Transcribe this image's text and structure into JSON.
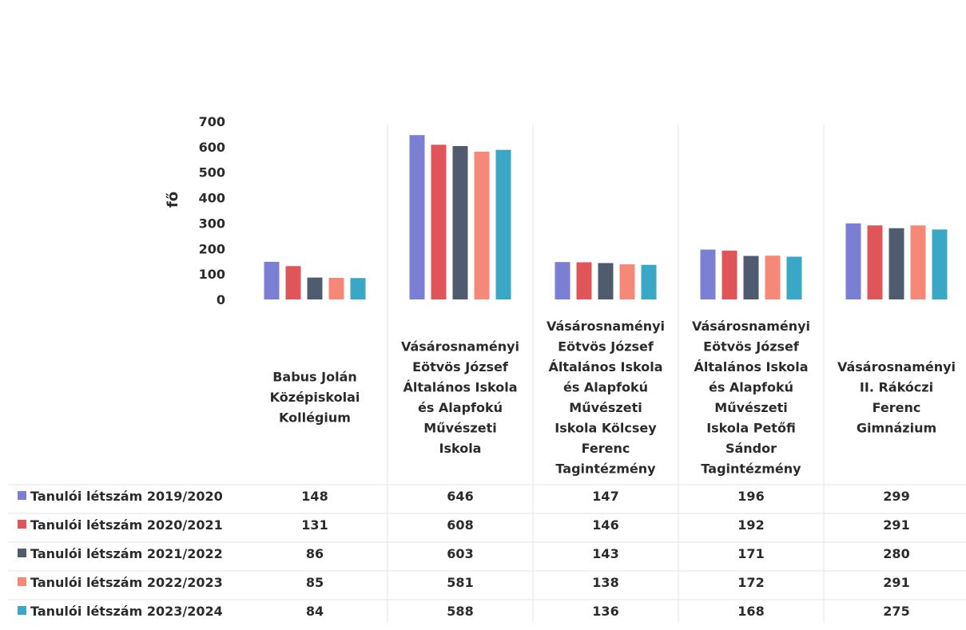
{
  "chart_data": {
    "type": "bar",
    "title": "",
    "xlabel": "",
    "ylabel": "fő",
    "ylim": [
      0,
      700
    ],
    "yticks": [
      0,
      100,
      200,
      300,
      400,
      500,
      600,
      700
    ],
    "grid": "vertical category separators",
    "legend": "data-table-left",
    "categories": [
      "Babus Jolán Középiskolai Kollégium",
      "Vásárosnaményi Eötvös József Általános Iskola és Alapfokú Művészeti Iskola",
      "Vásárosnaményi Eötvös József Általános Iskola és Alapfokú Művészeti Iskola Kölcsey Ferenc Tagintézmény",
      "Vásárosnaményi Eötvös József Általános Iskola és Alapfokú Művészeti Iskola Petőfi Sándor Tagintézmény",
      "Vásárosnaményi II. Rákóczi Ferenc Gimnázium"
    ],
    "category_lines": [
      [
        "Babus Jolán",
        "Középiskolai",
        "Kollégium"
      ],
      [
        "Vásárosnaményi",
        "Eötvös József",
        "Általános Iskola",
        "és Alapfokú",
        "Művészeti",
        "Iskola"
      ],
      [
        "Vásárosnaményi",
        "Eötvös József",
        "Általános Iskola",
        "és Alapfokú",
        "Művészeti",
        "Iskola Kölcsey",
        "Ferenc",
        "Tagintézmény"
      ],
      [
        "Vásárosnaményi",
        "Eötvös József",
        "Általános Iskola",
        "és Alapfokú",
        "Művészeti",
        "Iskola Petőfi",
        "Sándor",
        "Tagintézmény"
      ],
      [
        "Vásárosnaményi",
        "II. Rákóczi",
        "Ferenc",
        "Gimnázium"
      ]
    ],
    "series": [
      {
        "name": "Tanulói létszám 2019/2020",
        "color": "#7b7fd4",
        "values": [
          148,
          646,
          147,
          196,
          299
        ]
      },
      {
        "name": "Tanulói létszám 2020/2021",
        "color": "#e0555a",
        "values": [
          131,
          608,
          146,
          192,
          291
        ]
      },
      {
        "name": "Tanulói létszám 2021/2022",
        "color": "#4f5b6e",
        "values": [
          86,
          603,
          143,
          171,
          280
        ]
      },
      {
        "name": "Tanulói létszám 2022/2023",
        "color": "#f58877",
        "values": [
          85,
          581,
          138,
          172,
          291
        ]
      },
      {
        "name": "Tanulói létszám 2023/2024",
        "color": "#3aa7c7",
        "values": [
          84,
          588,
          136,
          168,
          275
        ]
      }
    ]
  }
}
